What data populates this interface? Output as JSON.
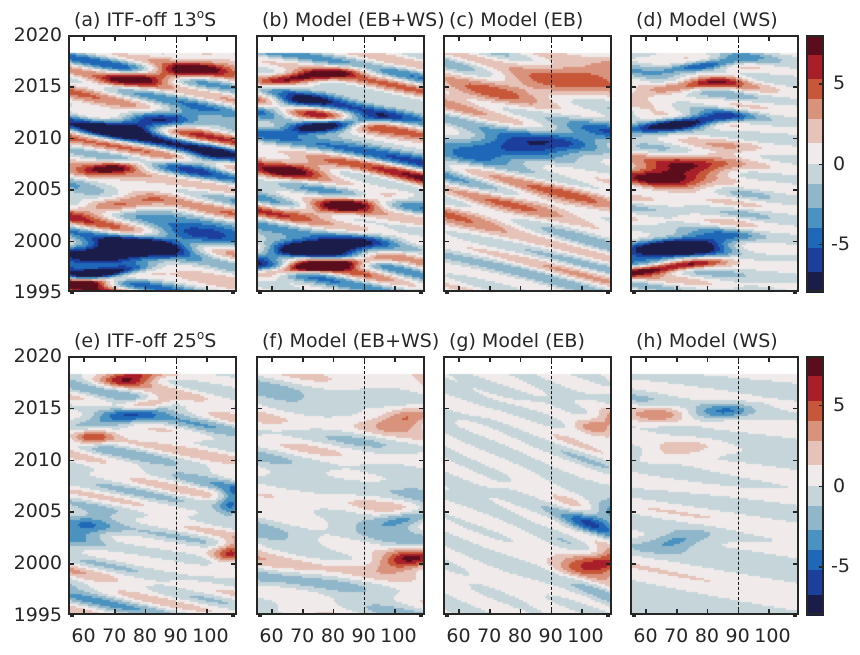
{
  "chart_data": {
    "type": "heatmap",
    "description": "Hovmoller diagrams (longitude vs time) of anomaly fields, 2 rows x 4 columns with shared colorbars",
    "xlim": [
      55,
      110
    ],
    "ylim": [
      1995,
      2020
    ],
    "data_end_year": 2018.4,
    "x_ticks": [
      60,
      70,
      80,
      90,
      100
    ],
    "x_tick_labels": [
      "60",
      "70",
      "80",
      "90",
      "100"
    ],
    "y_ticks": [
      1995,
      2000,
      2005,
      2010,
      2015,
      2020
    ],
    "y_tick_labels": [
      "1995",
      "2000",
      "2005",
      "2010",
      "2015",
      "2020"
    ],
    "reference_line_lon": 90,
    "colorbar": {
      "range": [
        -8,
        8
      ],
      "ticks": [
        5,
        0,
        -5
      ],
      "tick_labels": [
        "5",
        "0",
        "-5"
      ],
      "colormap": "diverging blue-white-red",
      "colors": [
        "#1a1d4a",
        "#1c3f9e",
        "#1f68b8",
        "#4a92c0",
        "#8fb6c9",
        "#c6d5da",
        "#f0ebea",
        "#e6c3b8",
        "#d9937c",
        "#c8573a",
        "#a81f2a",
        "#5c0d1c"
      ]
    },
    "panels": [
      {
        "id": "a",
        "title_prefix": "(a) ITF-off 13",
        "title_sup": "o",
        "title_suffix": "S",
        "row": 1,
        "amplitude": "strong",
        "pattern": "westward-propagating alternating bands; strong negative ~1997-2001 and ~2011-2013, strong positive ~2015-2017"
      },
      {
        "id": "b",
        "title_prefix": "(b) Model (EB+WS)",
        "title_sup": "",
        "title_suffix": "",
        "row": 1,
        "amplitude": "strong",
        "pattern": "similar to (a); strong negative ~1998-2000 and ~2011"
      },
      {
        "id": "c",
        "title_prefix": "(c) Model (EB)",
        "title_sup": "",
        "title_suffix": "",
        "row": 1,
        "amplitude": "moderate",
        "pattern": "smooth tilted bands; negative ~2007-2011, positive ~2014-2018"
      },
      {
        "id": "d",
        "title_prefix": "(d) Model (WS)",
        "title_sup": "",
        "title_suffix": "",
        "row": 1,
        "amplitude": "strong west, weak east",
        "pattern": "strong west of 90E, fading to near zero east of 100E"
      },
      {
        "id": "e",
        "title_prefix": "(e) ITF-off 25",
        "title_sup": "o",
        "title_suffix": "S",
        "row": 2,
        "amplitude": "moderate",
        "pattern": "patchy alternating anomalies"
      },
      {
        "id": "f",
        "title_prefix": "(f) Model (EB+WS)",
        "title_sup": "",
        "title_suffix": "",
        "row": 2,
        "amplitude": "weak-moderate",
        "pattern": "tilted bands, strongest positive near 105E ~2000"
      },
      {
        "id": "g",
        "title_prefix": "(g) Model (EB)",
        "title_sup": "",
        "title_suffix": "",
        "row": 2,
        "amplitude": "weak west, moderate east",
        "pattern": "eastern-boundary signals propagating westward; positive ~2000 and ~2012 near 105E, negative ~2004"
      },
      {
        "id": "h",
        "title_prefix": "(h) Model (WS)",
        "title_sup": "",
        "title_suffix": "",
        "row": 2,
        "amplitude": "weak",
        "pattern": "weak patchy anomalies"
      }
    ]
  }
}
